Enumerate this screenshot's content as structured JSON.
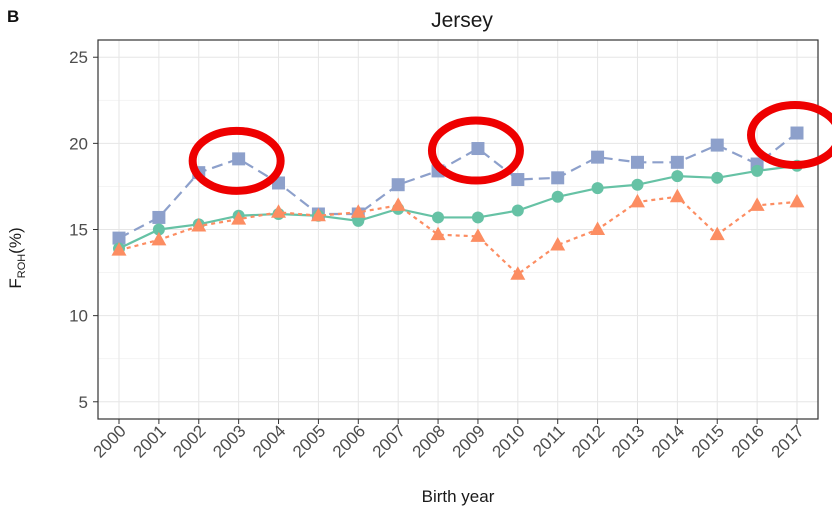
{
  "panel_letter": "B",
  "chart_data": {
    "type": "line",
    "title": "Jersey",
    "xlabel": "Birth year",
    "ylabel_main": "F",
    "ylabel_sub": "ROH",
    "ylabel_tail": "(%)",
    "x": [
      "2000",
      "2001",
      "2002",
      "2003",
      "2004",
      "2005",
      "2006",
      "2007",
      "2008",
      "2009",
      "2010",
      "2011",
      "2012",
      "2013",
      "2014",
      "2015",
      "2016",
      "2017"
    ],
    "ylim": [
      4,
      26
    ],
    "yticks": [
      5,
      10,
      15,
      20,
      25
    ],
    "grid": true,
    "legend": "none",
    "series": [
      {
        "marker": "square",
        "color": "#8da0cb",
        "line": "dashed",
        "values": [
          14.5,
          15.7,
          18.3,
          19.1,
          17.7,
          15.9,
          15.9,
          17.6,
          18.4,
          19.7,
          17.9,
          18.0,
          19.2,
          18.9,
          18.9,
          19.9,
          18.8,
          20.6
        ]
      },
      {
        "marker": "circle",
        "color": "#66c2a5",
        "line": "solid",
        "values": [
          13.9,
          15.0,
          15.3,
          15.8,
          15.9,
          15.8,
          15.5,
          16.2,
          15.7,
          15.7,
          16.1,
          16.9,
          17.4,
          17.6,
          18.1,
          18.0,
          18.4,
          18.7
        ]
      },
      {
        "marker": "triangle",
        "color": "#fc8d62",
        "line": "dotted",
        "values": [
          13.8,
          14.4,
          15.2,
          15.6,
          16.0,
          15.8,
          16.0,
          16.4,
          14.7,
          14.6,
          12.4,
          14.1,
          15.0,
          16.6,
          16.9,
          14.7,
          16.4,
          16.6
        ]
      }
    ],
    "highlight_color": "#ee0000",
    "highlights": [
      {
        "x": "2003",
        "y": 19.1
      },
      {
        "x": "2009",
        "y": 19.7
      },
      {
        "x": "2017",
        "y": 20.6
      }
    ]
  }
}
